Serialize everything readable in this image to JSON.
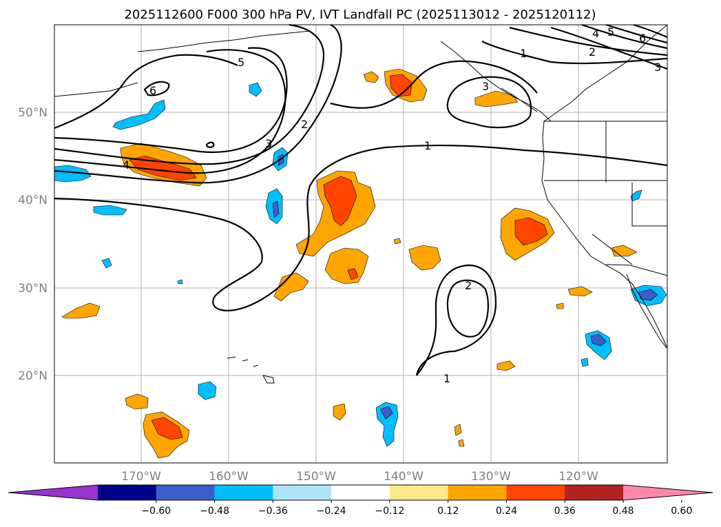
{
  "title": "2025112600 F000 300 hPa PV, IVT Landfall PC (2025113012 - 2025120112)",
  "lat_labels": [
    "50°N",
    "40°N",
    "30°N",
    "20°N"
  ],
  "lon_labels": [
    "170°W",
    "160°W",
    "150°W",
    "140°W",
    "130°W",
    "120°W"
  ],
  "contour_labels": [
    "1",
    "1",
    "1",
    "2",
    "2",
    "2",
    "3",
    "3",
    "3",
    "4",
    "4",
    "5",
    "5",
    "6",
    "6"
  ],
  "colorbar": {
    "ticks": [
      "−0.60",
      "−0.48",
      "−0.36",
      "−0.24",
      "−0.12",
      "0.12",
      "0.24",
      "0.36",
      "0.48",
      "0.60"
    ],
    "colors": [
      "#9933cc",
      "#00008b",
      "#3a5fcd",
      "#00bfff",
      "#aee4fa",
      "#ffffff",
      "#fde98b",
      "#ffa500",
      "#ff4500",
      "#b22222",
      "#ff88aa"
    ]
  },
  "colors": {
    "pos_weak": "#ffa500",
    "pos_strong": "#ff4500",
    "neg_weak": "#00bfff",
    "neg_strong": "#3a5fcd",
    "grid": "#b0b0b0"
  }
}
